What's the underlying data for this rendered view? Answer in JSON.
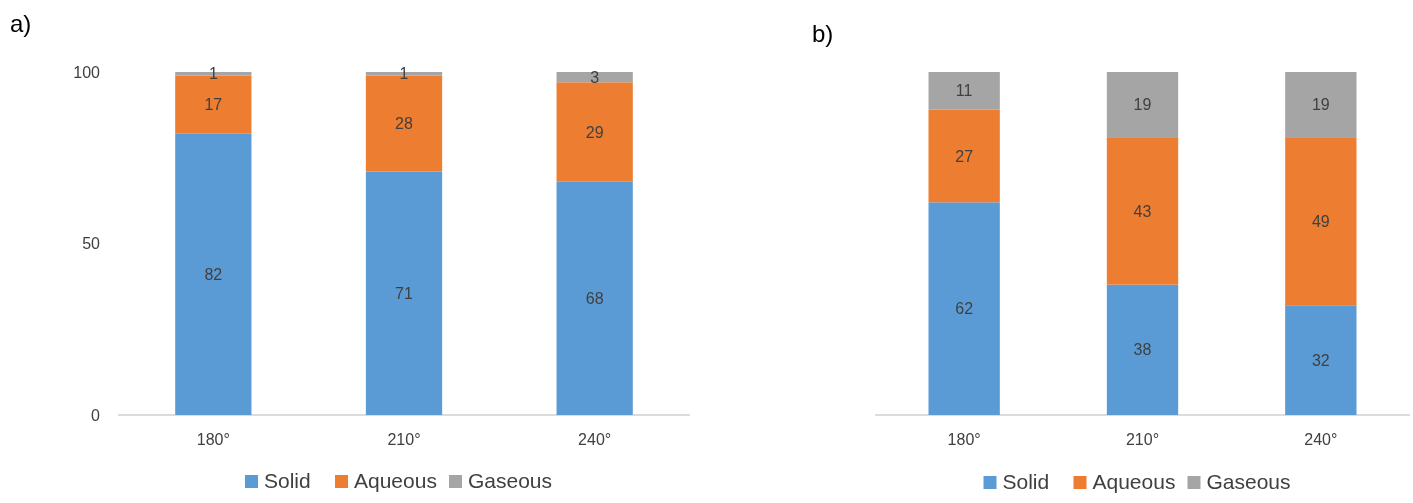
{
  "chart_data": [
    {
      "type": "bar",
      "title": "a)",
      "stacked": true,
      "categories": [
        "180°",
        "210°",
        "240°"
      ],
      "ylim": [
        0,
        100
      ],
      "yticks": [
        0,
        50,
        100
      ],
      "data_labels": true,
      "legend": "bottom",
      "series": [
        {
          "name": "Solid",
          "color": "#5b9bd5",
          "values": [
            82,
            71,
            68
          ]
        },
        {
          "name": "Aqueous",
          "color": "#ed7d31",
          "values": [
            17,
            28,
            29
          ]
        },
        {
          "name": "Gaseous",
          "color": "#a5a5a5",
          "values": [
            1,
            1,
            3
          ]
        }
      ]
    },
    {
      "type": "bar",
      "title": "b)",
      "stacked": true,
      "categories": [
        "180°",
        "210°",
        "240°"
      ],
      "ylim": [
        0,
        100
      ],
      "tick_labels": "x",
      "data_labels": true,
      "legend": "bottom",
      "series": [
        {
          "name": "Solid",
          "color": "#5b9bd5",
          "values": [
            62,
            38,
            32
          ]
        },
        {
          "name": "Aqueous",
          "color": "#ed7d31",
          "values": [
            27,
            43,
            49
          ]
        },
        {
          "name": "Gaseous",
          "color": "#a5a5a5",
          "values": [
            11,
            19,
            19
          ]
        }
      ]
    }
  ]
}
